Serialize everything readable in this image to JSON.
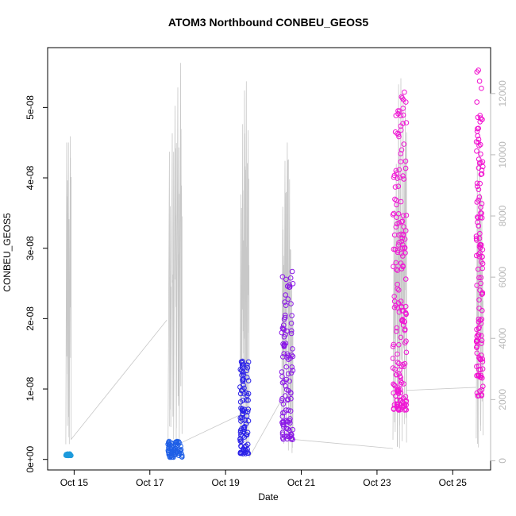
{
  "chart_data": {
    "type": "scatter",
    "title": "ATOM3 Northbound CONBEU_GEOS5",
    "xlabel": "Date",
    "ylabel": "CONBEU_GEOS5",
    "x_ticks": [
      "Oct 15",
      "Oct 17",
      "Oct 19",
      "Oct 21",
      "Oct 23",
      "Oct 25"
    ],
    "x_range_days": [
      14.3,
      26.0
    ],
    "y_ticks": [
      "0e+00",
      "1e-08",
      "2e-08",
      "3e-08",
      "4e-08",
      "5e-08"
    ],
    "y_tick_values": [
      0,
      1e-08,
      2e-08,
      3e-08,
      4e-08,
      5e-08
    ],
    "ylim": [
      -1.5e-09,
      5.85e-08
    ],
    "y2_ticks": [
      "0",
      "2000",
      "4000",
      "6000",
      "8000",
      "10000",
      "12000"
    ],
    "y2_tick_values": [
      0,
      2000,
      4000,
      6000,
      8000,
      10000,
      12000
    ],
    "y2lim": [
      -300,
      13500
    ],
    "grid": false,
    "colors": {
      "flight1": "#1e9bdc",
      "flight2": "#1f5fe6",
      "flight3": "#2a20e8",
      "flight4": "#8a18e6",
      "flight5": "#ef18d4",
      "flight6": "#f10fcf",
      "altitude_line": "#c8c8c8"
    },
    "flights": [
      {
        "t0": 14.78,
        "t1": 14.92,
        "ymin": 5.5e-10,
        "ymax": 8e-10,
        "n": 28,
        "seed": 11,
        "alt_peaks": [
          10400,
          10400,
          10600
        ]
      },
      {
        "t0": 17.48,
        "t1": 17.85,
        "ymin": 3e-10,
        "ymax": 2.7e-09,
        "n": 70,
        "seed": 23,
        "alt_peaks": [
          10100,
          10700,
          11600,
          12200,
          13000
        ]
      },
      {
        "t0": 19.38,
        "t1": 19.62,
        "ymin": 8e-10,
        "ymax": 1.4e-08,
        "n": 95,
        "seed": 37,
        "alt_peaks": [
          8700,
          11000,
          12100,
          12400,
          10800
        ]
      },
      {
        "t0": 20.48,
        "t1": 20.78,
        "ymin": 2.8e-09,
        "ymax": 2.75e-08,
        "n": 110,
        "seed": 53,
        "alt_peaks": [
          8300,
          9800,
          10400,
          9200,
          5800
        ]
      },
      {
        "t0": 23.42,
        "t1": 23.78,
        "ymin": 7e-09,
        "ymax": 5.35e-08,
        "n": 190,
        "seed": 71,
        "alt_peaks": [
          8200,
          9700,
          12300,
          12500,
          12000,
          11800
        ]
      },
      {
        "t0": 25.62,
        "t1": 25.8,
        "ymin": 9e-09,
        "ymax": 5.55e-08,
        "n": 130,
        "seed": 89,
        "alt_peaks": [
          9700,
          10400,
          8600
        ]
      }
    ],
    "altitude_connectors": [
      {
        "from_t": 14.92,
        "from_alt": 700,
        "to_t": 17.45,
        "to_alt": 4600
      },
      {
        "from_t": 17.85,
        "from_alt": 600,
        "to_t": 19.38,
        "to_alt": 1500
      },
      {
        "from_t": 19.62,
        "from_alt": 100,
        "to_t": 20.48,
        "to_alt": 2000
      },
      {
        "from_t": 20.78,
        "from_alt": 700,
        "to_t": 23.42,
        "to_alt": 400
      },
      {
        "from_t": 23.78,
        "from_alt": 2300,
        "to_t": 25.62,
        "to_alt": 2400
      }
    ]
  }
}
